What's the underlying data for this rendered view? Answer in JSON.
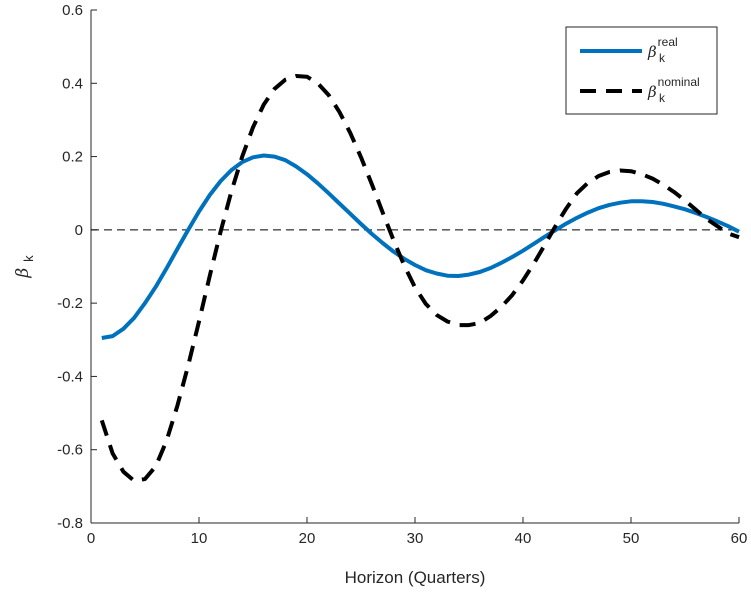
{
  "chart_data": {
    "type": "line",
    "title": "",
    "xlabel": "Horizon (Quarters)",
    "ylabel": {
      "symbol": "β",
      "subscript": "k"
    },
    "xlim": [
      0,
      60
    ],
    "ylim": [
      -0.8,
      0.6
    ],
    "xticks": [
      0,
      10,
      20,
      30,
      40,
      50,
      60
    ],
    "yticks": [
      -0.8,
      -0.6,
      -0.4,
      -0.2,
      0,
      0.2,
      0.4,
      0.6
    ],
    "xtick_labels": [
      "0",
      "10",
      "20",
      "30",
      "40",
      "50",
      "60"
    ],
    "ytick_labels": [
      "-0.8",
      "-0.6",
      "-0.4",
      "-0.2",
      "0",
      "0.2",
      "0.4",
      "0.6"
    ],
    "grid": false,
    "legend_position": "top-right",
    "reference_line": {
      "y": 0,
      "style": "dashed",
      "color": "#000000"
    },
    "series": [
      {
        "name": {
          "symbol": "β",
          "subscript": "k",
          "superscript": "real"
        },
        "color": "#0072BD",
        "style": "solid",
        "x": [
          1,
          2,
          3,
          4,
          5,
          6,
          7,
          8,
          9,
          10,
          11,
          12,
          13,
          14,
          15,
          16,
          17,
          18,
          19,
          20,
          21,
          22,
          23,
          24,
          25,
          26,
          27,
          28,
          29,
          30,
          31,
          32,
          33,
          34,
          35,
          36,
          37,
          38,
          39,
          40,
          41,
          42,
          43,
          44,
          45,
          46,
          47,
          48,
          49,
          50,
          51,
          52,
          53,
          54,
          55,
          56,
          57,
          58,
          59,
          60
        ],
        "y": [
          -0.295,
          -0.29,
          -0.27,
          -0.24,
          -0.2,
          -0.155,
          -0.105,
          -0.052,
          0.0,
          0.05,
          0.095,
          0.133,
          0.163,
          0.185,
          0.198,
          0.203,
          0.2,
          0.19,
          0.173,
          0.152,
          0.127,
          0.1,
          0.072,
          0.044,
          0.016,
          -0.011,
          -0.036,
          -0.059,
          -0.079,
          -0.096,
          -0.11,
          -0.119,
          -0.125,
          -0.126,
          -0.122,
          -0.115,
          -0.104,
          -0.09,
          -0.074,
          -0.057,
          -0.038,
          -0.019,
          -0.001,
          0.017,
          0.033,
          0.047,
          0.059,
          0.068,
          0.074,
          0.078,
          0.078,
          0.076,
          0.071,
          0.064,
          0.056,
          0.046,
          0.035,
          0.023,
          0.01,
          -0.005
        ]
      },
      {
        "name": {
          "symbol": "β",
          "subscript": "k",
          "superscript": "nominal"
        },
        "color": "#000000",
        "style": "dashed",
        "x": [
          1,
          2,
          3,
          4,
          5,
          6,
          7,
          8,
          9,
          10,
          11,
          12,
          13,
          14,
          15,
          16,
          17,
          18,
          19,
          20,
          21,
          22,
          23,
          24,
          25,
          26,
          27,
          28,
          29,
          30,
          31,
          32,
          33,
          34,
          35,
          36,
          37,
          38,
          39,
          40,
          41,
          42,
          43,
          44,
          45,
          46,
          47,
          48,
          49,
          50,
          51,
          52,
          53,
          54,
          55,
          56,
          57,
          58,
          59,
          60
        ],
        "y": [
          -0.52,
          -0.61,
          -0.66,
          -0.685,
          -0.68,
          -0.645,
          -0.575,
          -0.48,
          -0.37,
          -0.25,
          -0.125,
          -0.005,
          0.105,
          0.2,
          0.28,
          0.342,
          0.385,
          0.41,
          0.42,
          0.418,
          0.4,
          0.368,
          0.322,
          0.265,
          0.198,
          0.125,
          0.048,
          -0.027,
          -0.097,
          -0.157,
          -0.202,
          -0.232,
          -0.25,
          -0.26,
          -0.26,
          -0.254,
          -0.235,
          -0.21,
          -0.178,
          -0.138,
          -0.092,
          -0.042,
          0.01,
          0.058,
          0.1,
          0.128,
          0.147,
          0.158,
          0.162,
          0.16,
          0.152,
          0.14,
          0.123,
          0.103,
          0.08,
          0.055,
          0.03,
          0.01,
          -0.01,
          -0.02
        ]
      }
    ]
  }
}
